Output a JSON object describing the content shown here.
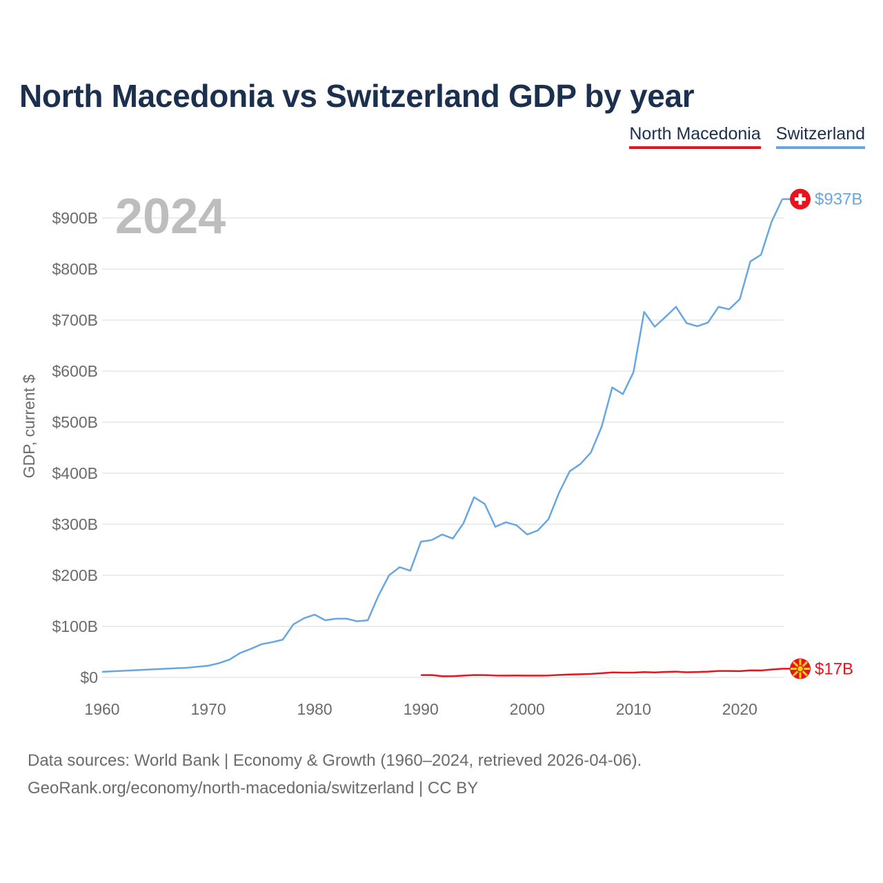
{
  "title": "North Macedonia vs Switzerland GDP by year",
  "legend": [
    {
      "label": "North Macedonia",
      "color": "#e8131b"
    },
    {
      "label": "Switzerland",
      "color": "#66a7e3"
    }
  ],
  "footer": {
    "line1": "Data sources: World Bank | Economy & Growth (1960–2024, retrieved 2026-04-06).",
    "line2": "GeoRank.org/economy/north-macedonia/switzerland | CC BY"
  },
  "chart_data": {
    "type": "line",
    "title": "North Macedonia vs Switzerland GDP by year",
    "year_label": "2024",
    "ylabel": "GDP, current $",
    "xlabel": "",
    "xlim": [
      1960,
      2024
    ],
    "ylim": [
      0,
      937
    ],
    "x_ticks": [
      1960,
      1970,
      1980,
      1990,
      2000,
      2010,
      2020
    ],
    "y_ticks": [
      0,
      100,
      200,
      300,
      400,
      500,
      600,
      700,
      800,
      900
    ],
    "y_tick_labels": [
      "$0",
      "$100B",
      "$200B",
      "$300B",
      "$400B",
      "$500B",
      "$600B",
      "$700B",
      "$800B",
      "$900B"
    ],
    "grid": true,
    "series": [
      {
        "name": "Switzerland",
        "color": "#66a7e3",
        "end_label": "$937B",
        "x": [
          1960,
          1961,
          1962,
          1963,
          1964,
          1965,
          1966,
          1967,
          1968,
          1969,
          1970,
          1971,
          1972,
          1973,
          1974,
          1975,
          1976,
          1977,
          1978,
          1979,
          1980,
          1981,
          1982,
          1983,
          1984,
          1985,
          1986,
          1987,
          1988,
          1989,
          1990,
          1991,
          1992,
          1993,
          1994,
          1995,
          1996,
          1997,
          1998,
          1999,
          2000,
          2001,
          2002,
          2003,
          2004,
          2005,
          2006,
          2007,
          2008,
          2009,
          2010,
          2011,
          2012,
          2013,
          2014,
          2015,
          2016,
          2017,
          2018,
          2019,
          2020,
          2021,
          2022,
          2023,
          2024
        ],
        "values": [
          11,
          12,
          13,
          14,
          15,
          16,
          17,
          18,
          19,
          21,
          23,
          28,
          35,
          48,
          56,
          65,
          69,
          74,
          104,
          116,
          123,
          112,
          115,
          115,
          110,
          112,
          160,
          200,
          216,
          209,
          266,
          269,
          280,
          272,
          302,
          353,
          340,
          295,
          304,
          298,
          280,
          288,
          310,
          362,
          404,
          418,
          441,
          491,
          568,
          555,
          598,
          716,
          687,
          706,
          726,
          694,
          688,
          695,
          726,
          721,
          741,
          815,
          828,
          893,
          937
        ]
      },
      {
        "name": "North Macedonia",
        "color": "#e8131b",
        "end_label": "$17B",
        "x": [
          1990,
          1991,
          1992,
          1993,
          1994,
          1995,
          1996,
          1997,
          1998,
          1999,
          2000,
          2001,
          2002,
          2003,
          2004,
          2005,
          2006,
          2007,
          2008,
          2009,
          2010,
          2011,
          2012,
          2013,
          2014,
          2015,
          2016,
          2017,
          2018,
          2019,
          2020,
          2021,
          2022,
          2023,
          2024
        ],
        "values": [
          4.5,
          4.8,
          2.4,
          2.6,
          3.6,
          4.7,
          4.6,
          3.8,
          3.6,
          3.7,
          3.6,
          3.5,
          3.8,
          4.9,
          5.7,
          6.3,
          6.9,
          8.3,
          9.8,
          9.4,
          9.4,
          10.5,
          9.8,
          10.8,
          11.4,
          10.1,
          10.7,
          11.3,
          12.7,
          12.6,
          12.4,
          13.9,
          13.6,
          15.5,
          17
        ]
      }
    ]
  }
}
